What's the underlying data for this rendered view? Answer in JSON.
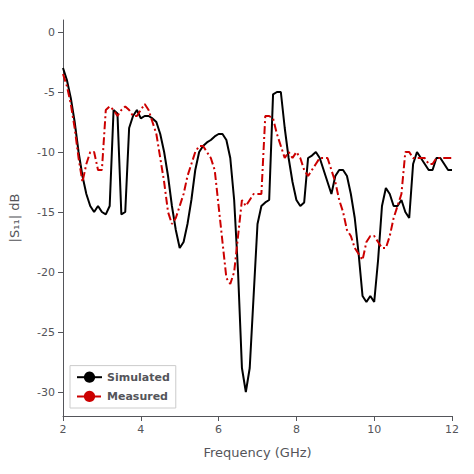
{
  "chart_data": {
    "type": "line",
    "xlabel": "Frequency (GHz)",
    "ylabel": "|S₁₁| dB",
    "xlim": [
      2,
      12
    ],
    "ylim": [
      -32,
      1
    ],
    "xticks": [
      2,
      4,
      6,
      8,
      10,
      12
    ],
    "yticks": [
      0,
      -5,
      -10,
      -15,
      -20,
      -25,
      -30
    ],
    "grid": false,
    "legend": "lower left",
    "x": [
      2.0,
      2.1,
      2.2,
      2.3,
      2.4,
      2.5,
      2.6,
      2.7,
      2.8,
      2.9,
      3.0,
      3.1,
      3.2,
      3.3,
      3.4,
      3.5,
      3.6,
      3.7,
      3.8,
      3.9,
      4.0,
      4.1,
      4.2,
      4.3,
      4.4,
      4.5,
      4.6,
      4.7,
      4.8,
      4.9,
      5.0,
      5.1,
      5.2,
      5.3,
      5.4,
      5.5,
      5.6,
      5.7,
      5.8,
      5.9,
      6.0,
      6.1,
      6.2,
      6.3,
      6.4,
      6.5,
      6.6,
      6.7,
      6.8,
      6.9,
      7.0,
      7.1,
      7.2,
      7.3,
      7.4,
      7.5,
      7.6,
      7.7,
      7.8,
      7.9,
      8.0,
      8.1,
      8.2,
      8.3,
      8.4,
      8.5,
      8.6,
      8.7,
      8.8,
      8.9,
      9.0,
      9.1,
      9.2,
      9.3,
      9.4,
      9.5,
      9.6,
      9.7,
      9.8,
      9.9,
      10.0,
      10.1,
      10.2,
      10.3,
      10.4,
      10.5,
      10.6,
      10.7,
      10.8,
      10.9,
      11.0,
      11.1,
      11.2,
      11.3,
      11.4,
      11.5,
      11.6,
      11.7,
      11.8,
      11.9,
      12.0
    ],
    "series": [
      {
        "name": "Simulated",
        "color": "#000000",
        "line_style": "solid",
        "values": [
          -3.0,
          -4.0,
          -5.5,
          -7.5,
          -10.0,
          -12.0,
          -13.5,
          -14.5,
          -15.0,
          -14.5,
          -15.0,
          -15.2,
          -14.5,
          -6.5,
          -6.8,
          -15.2,
          -15.0,
          -8.0,
          -7.0,
          -6.5,
          -7.2,
          -7.0,
          -7.0,
          -7.2,
          -7.5,
          -8.5,
          -10.0,
          -12.0,
          -14.5,
          -16.5,
          -18.0,
          -17.5,
          -16.0,
          -14.0,
          -11.5,
          -10.0,
          -9.5,
          -9.2,
          -9.0,
          -8.7,
          -8.5,
          -8.5,
          -9.0,
          -10.5,
          -14.0,
          -20.0,
          -28.0,
          -30.0,
          -28.0,
          -22.0,
          -16.0,
          -14.5,
          -14.2,
          -14.0,
          -5.2,
          -5.0,
          -5.0,
          -8.0,
          -10.5,
          -12.5,
          -14.0,
          -14.5,
          -14.2,
          -10.5,
          -10.3,
          -10.0,
          -10.5,
          -11.5,
          -12.5,
          -13.5,
          -12.0,
          -11.5,
          -11.5,
          -12.0,
          -13.5,
          -15.5,
          -18.5,
          -22.0,
          -22.5,
          -22.0,
          -22.5,
          -19.0,
          -14.5,
          -13.0,
          -13.5,
          -14.5,
          -14.5,
          -14.0,
          -15.0,
          -15.5,
          -11.0,
          -10.0,
          -10.5,
          -11.0,
          -11.5,
          -11.5,
          -10.5,
          -10.5,
          -11.0,
          -11.5,
          -11.5
        ]
      },
      {
        "name": "Measured",
        "color": "#cc0000",
        "line_style": "dash-dot",
        "values": [
          -3.5,
          -4.5,
          -6.0,
          -8.0,
          -10.5,
          -12.5,
          -11.0,
          -10.0,
          -10.0,
          -11.5,
          -11.5,
          -6.5,
          -6.2,
          -6.5,
          -7.0,
          -6.5,
          -6.2,
          -6.5,
          -7.0,
          -7.0,
          -6.5,
          -6.0,
          -6.5,
          -7.5,
          -8.5,
          -10.5,
          -12.5,
          -15.0,
          -16.0,
          -15.5,
          -14.5,
          -13.5,
          -12.0,
          -11.0,
          -10.0,
          -9.5,
          -9.5,
          -10.0,
          -10.5,
          -11.5,
          -14.5,
          -17.5,
          -20.5,
          -21.0,
          -20.0,
          -17.0,
          -14.0,
          -14.5,
          -14.0,
          -13.5,
          -13.5,
          -13.5,
          -7.0,
          -7.0,
          -7.2,
          -8.5,
          -9.5,
          -10.5,
          -10.0,
          -10.5,
          -10.0,
          -10.5,
          -11.5,
          -12.0,
          -11.5,
          -11.0,
          -10.5,
          -10.5,
          -10.5,
          -11.5,
          -12.5,
          -14.0,
          -15.0,
          -16.5,
          -17.0,
          -18.0,
          -18.5,
          -19.0,
          -17.5,
          -17.0,
          -17.0,
          -17.5,
          -18.0,
          -18.0,
          -17.0,
          -15.5,
          -14.5,
          -13.5,
          -10.0,
          -10.0,
          -10.5,
          -10.5,
          -10.5,
          -10.5,
          -11.0,
          -11.0,
          -10.5,
          -10.5,
          -10.5,
          -10.5,
          -10.5
        ]
      }
    ]
  }
}
